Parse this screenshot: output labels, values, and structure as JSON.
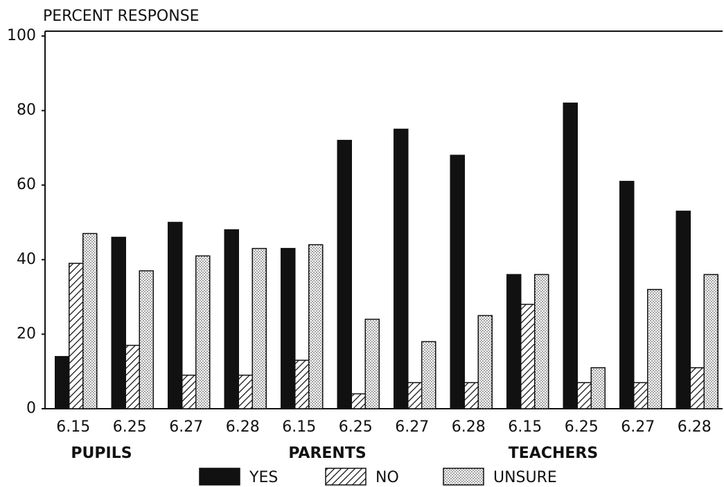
{
  "chart_data": {
    "type": "bar",
    "y_label": "PERCENT RESPONSE",
    "categories": [
      "6.15",
      "6.25",
      "6.27",
      "6.28",
      "6.15",
      "6.25",
      "6.27",
      "6.28",
      "6.15",
      "6.25",
      "6.27",
      "6.28"
    ],
    "groups": [
      "PUPILS",
      "PARENTS",
      "TEACHERS"
    ],
    "series": [
      {
        "name": "YES",
        "color": "#111111",
        "pattern": "solid",
        "values": [
          14,
          46,
          50,
          48,
          43,
          72,
          75,
          68,
          36,
          82,
          61,
          53
        ]
      },
      {
        "name": "NO",
        "color": "#111111",
        "pattern": "hatch",
        "values": [
          39,
          17,
          9,
          9,
          13,
          4,
          7,
          7,
          28,
          7,
          7,
          11
        ]
      },
      {
        "name": "UNSURE",
        "color": "#111111",
        "pattern": "dots",
        "values": [
          47,
          37,
          41,
          43,
          44,
          24,
          18,
          25,
          36,
          11,
          32,
          36
        ]
      }
    ],
    "ylim": [
      0,
      100
    ],
    "yticks": [
      0,
      20,
      40,
      60,
      80,
      100
    ],
    "grid": false
  }
}
